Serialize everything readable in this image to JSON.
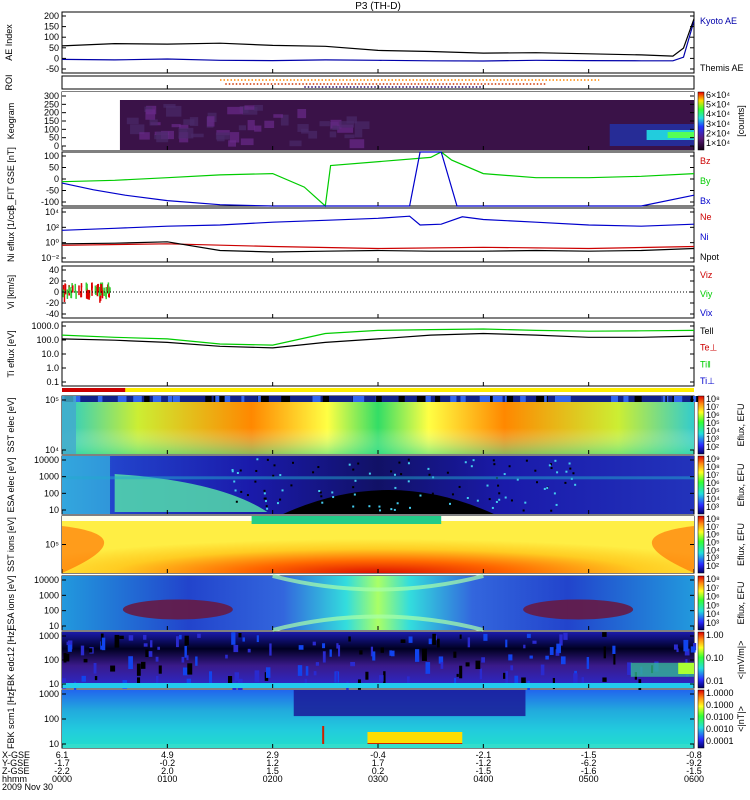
{
  "title": "P3 (TH-D)",
  "date_label": "2009 Nov 30",
  "chart_data": {
    "type": "line",
    "title": "P3 (TH-D)",
    "time_ticks": [
      "0000",
      "0100",
      "0200",
      "0300",
      "0400",
      "0500",
      "0600"
    ],
    "ephemeris": {
      "row_labels": [
        "X-GSE",
        "Y-GSE",
        "Z-GSE",
        "hhmm"
      ],
      "values": [
        [
          "6.1",
          "4.9",
          "2.9",
          "-0.4",
          "-2.1",
          "-1.5",
          "-0.8"
        ],
        [
          "-1.7",
          "-0.2",
          "1.2",
          "1.7",
          "-1.2",
          "-6.2",
          "-9.2"
        ],
        [
          "-2.2",
          "2.0",
          "1.5",
          "0.2",
          "-1.5",
          "-1.6",
          "-1.5"
        ],
        [
          "0000",
          "0100",
          "0200",
          "0300",
          "0400",
          "0500",
          "0600"
        ]
      ]
    },
    "panels": [
      {
        "id": "ae",
        "ylabel": "AE Index",
        "yticks": [
          "200",
          "150",
          "100",
          "50",
          "0",
          "-50"
        ],
        "series": [
          {
            "name": "Kyoto AE",
            "color": "#0000aa",
            "x": [
              0,
              0.5,
              1,
              1.5,
              2,
              2.5,
              3,
              3.5,
              4,
              4.5,
              5,
              5.5,
              5.8,
              5.9,
              6
            ],
            "y": [
              10,
              8,
              12,
              6,
              5,
              8,
              6,
              4,
              3,
              6,
              5,
              4,
              4,
              20,
              180
            ]
          },
          {
            "name": "Themis AE",
            "color": "#000000",
            "x": [
              0,
              0.5,
              1,
              1.5,
              2,
              2.5,
              3,
              3.5,
              4,
              4.5,
              5,
              5.5,
              5.8,
              5.9,
              6
            ],
            "y": [
              70,
              80,
              78,
              82,
              72,
              68,
              50,
              45,
              38,
              40,
              35,
              30,
              25,
              60,
              190
            ]
          }
        ]
      },
      {
        "id": "roi",
        "ylabel": "ROI",
        "yticks": []
      },
      {
        "id": "keogram",
        "ylabel": "Keogram",
        "yticks": [
          "300",
          "250",
          "200",
          "150",
          "100",
          "50",
          "0"
        ],
        "colorbar_ticks": [
          "6×10⁴",
          "5×10⁴",
          "4×10⁴",
          "3×10⁴",
          "2×10⁴",
          "1×10⁴"
        ],
        "colorbar_label": "[counts]"
      },
      {
        "id": "bfit",
        "ylabel": "B_FIT GSE [nT]",
        "yticks": [
          "100",
          "50",
          "0",
          "-50",
          "-100"
        ],
        "series": [
          {
            "name": "Bz",
            "color": "#cc0000",
            "x": [],
            "y": []
          },
          {
            "name": "By",
            "color": "#00cc00",
            "x": [
              0,
              0.5,
              1,
              1.5,
              2,
              2.3,
              2.5,
              2.55,
              3.5,
              3.6,
              3.7,
              4,
              4.5,
              5,
              5.5,
              6
            ],
            "y": [
              -10,
              -5,
              5,
              15,
              20,
              -30,
              -100,
              50,
              80,
              100,
              70,
              20,
              5,
              5,
              10,
              20
            ]
          },
          {
            "name": "Bx",
            "color": "#0000cc",
            "x": [
              0,
              0.3,
              0.6,
              1,
              1.5,
              2,
              2.5,
              3,
              3.3,
              3.4,
              3.6,
              3.75,
              3.8,
              5,
              5.5,
              6
            ],
            "y": [
              -15,
              -40,
              -60,
              -80,
              -95,
              -100,
              -100,
              -100,
              -100,
              100,
              100,
              -100,
              -100,
              -100,
              -100,
              -60
            ]
          }
        ]
      },
      {
        "id": "ni",
        "ylabel": "Ni eflux [1/cc]",
        "yticks": [
          "10⁴",
          "10²",
          "10⁰",
          "10⁻²"
        ],
        "series": [
          {
            "name": "Ne",
            "color": "#cc0000",
            "x": [
              0,
              1,
              2,
              3,
              4,
              5,
              6
            ],
            "y": [
              0.3,
              0.5,
              0.2,
              0.1,
              0.15,
              0.1,
              0.2
            ]
          },
          {
            "name": "Ni",
            "color": "#0000cc",
            "x": [
              0,
              0.5,
              1,
              1.5,
              2,
              2.5,
              3,
              3.3,
              3.4,
              3.6,
              3.8,
              4,
              4.5,
              5,
              5.5,
              6
            ],
            "y": [
              50,
              100,
              200,
              300,
              800,
              1500,
              3000,
              6000,
              300,
              400,
              5000,
              2000,
              800,
              300,
              200,
              400
            ]
          },
          {
            "name": "Npot",
            "color": "#000000",
            "x": [
              0,
              0.5,
              1,
              1.5,
              2,
              2.5,
              3,
              3.5,
              4,
              4.5,
              5,
              5.5,
              6
            ],
            "y": [
              0.5,
              0.6,
              1,
              0.05,
              0.03,
              0.04,
              0.05,
              0.04,
              0.04,
              0.05,
              0.04,
              0.05,
              0.1
            ]
          }
        ]
      },
      {
        "id": "vi",
        "ylabel": "Vi [km/s]",
        "yticks": [
          "40",
          "20",
          "0",
          "-20",
          "-40"
        ],
        "series": [
          {
            "name": "Viz",
            "color": "#cc0000",
            "x": [],
            "y": []
          },
          {
            "name": "Viy",
            "color": "#00cc00",
            "x": [],
            "y": []
          },
          {
            "name": "Vix",
            "color": "#0000cc",
            "x": [],
            "y": []
          }
        ]
      },
      {
        "id": "ti",
        "ylabel": "Ti eflux [eV]",
        "yticks": [
          "1000.0",
          "100.0",
          "10.0",
          "1.0",
          "0.1"
        ],
        "series": [
          {
            "name": "Tell",
            "color": "#000000",
            "x": [
              0,
              0.5,
              1,
              1.5,
              2,
              2.5,
              3,
              3.5,
              4,
              4.5,
              5,
              5.5,
              6
            ],
            "y": [
              150,
              120,
              80,
              40,
              30,
              80,
              150,
              300,
              400,
              300,
              200,
              200,
              250
            ]
          },
          {
            "name": "Te⊥",
            "color": "#cc0000",
            "x": [],
            "y": []
          },
          {
            "name": "Ti‖",
            "color": "#00cc00",
            "x": [
              0,
              0.5,
              1,
              1.5,
              2,
              2.5,
              3,
              3.5,
              4,
              4.5,
              5,
              5.5,
              6
            ],
            "y": [
              300,
              200,
              150,
              60,
              50,
              400,
              700,
              800,
              900,
              700,
              600,
              650,
              700
            ]
          },
          {
            "name": "Ti⊥",
            "color": "#0000cc",
            "x": [],
            "y": []
          }
        ]
      },
      {
        "id": "sst_e",
        "ylabel": "SST elec [eV]",
        "yticks": [
          "10⁵",
          "10⁴"
        ],
        "colorbar_ticks": [
          "10⁸",
          "10⁷",
          "10⁶",
          "10⁵",
          "10⁴",
          "10³",
          "10²"
        ],
        "colorbar_label": "Eflux, EFU"
      },
      {
        "id": "esa_e",
        "ylabel": "ESA elec [eV]",
        "yticks": [
          "10000",
          "1000",
          "100",
          "10"
        ],
        "colorbar_ticks": [
          "10⁹",
          "10⁸",
          "10⁷",
          "10⁶",
          "10⁵",
          "10⁴",
          "10³"
        ],
        "colorbar_label": "Eflux, EFU"
      },
      {
        "id": "sst_i",
        "ylabel": "SST ions [eV]",
        "yticks": [
          "10⁵"
        ],
        "colorbar_ticks": [
          "10⁸",
          "10⁷",
          "10⁶",
          "10⁵",
          "10⁴",
          "10³",
          "10²"
        ],
        "colorbar_label": "Eflux, EFU"
      },
      {
        "id": "esa_i",
        "ylabel": "ESA ions [eV]",
        "yticks": [
          "10000",
          "1000",
          "100",
          "10"
        ],
        "colorbar_ticks": [
          "10⁸",
          "10⁷",
          "10⁶",
          "10⁵",
          "10⁴",
          "10³"
        ],
        "colorbar_label": "Eflux, EFU"
      },
      {
        "id": "fbk_e",
        "ylabel": "FBK edc12 [Hz]",
        "yticks": [
          "1000",
          "100",
          "10"
        ],
        "colorbar_ticks": [
          "1.00",
          "0.10",
          "0.01"
        ],
        "colorbar_label": "<|mV/m|>"
      },
      {
        "id": "fbk_b",
        "ylabel": "FBK scm1 [Hz]",
        "yticks": [
          "1000",
          "100",
          "10"
        ],
        "colorbar_ticks": [
          "1.0000",
          "0.1000",
          "0.0100",
          "0.0010",
          "0.0001"
        ],
        "colorbar_label": "<|nT|>"
      }
    ]
  }
}
